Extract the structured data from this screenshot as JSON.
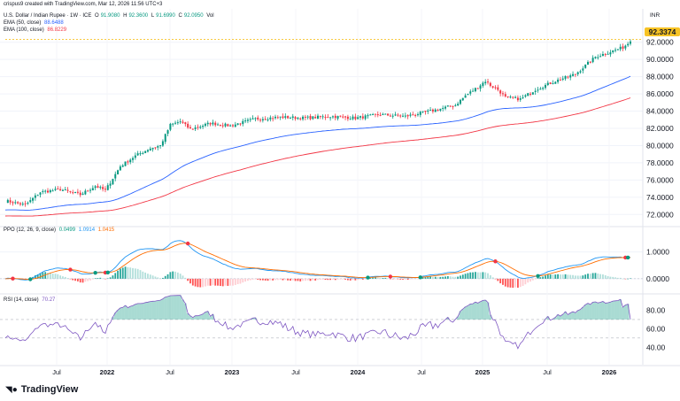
{
  "attribution": "crispus9 created with TradingView.com, Mar 12, 2026 11:56 UTC+3",
  "currency": "INR",
  "brand": "TradingView",
  "brand_icon": "tradingview-logo-icon",
  "legend": {
    "symbol": "U.S. Dollar / Indian Rupee · 1W · ICE",
    "ohlc": [
      {
        "k": "O",
        "v": "91.9080"
      },
      {
        "k": "H",
        "v": "92.3600"
      },
      {
        "k": "L",
        "v": "91.6990"
      },
      {
        "k": "C",
        "v": "92.0950"
      }
    ],
    "vol": "Vol",
    "ema50": {
      "label": "EMA (50, close)",
      "value": "88.6488"
    },
    "ema100": {
      "label": "EMA (100, close)",
      "value": "86.8229"
    },
    "ppo": {
      "label": "PPO (12, 26, 9, close)",
      "v1": "0.0499",
      "v2": "1.0914",
      "v3": "1.0415"
    },
    "rsi": {
      "label": "RSI (14, close)",
      "value": "70.27"
    }
  },
  "last_price": "92.3374",
  "colors": {
    "up": "#089981",
    "down": "#f23645",
    "ema50": "#2962ff",
    "ema100": "#f23645",
    "ppo_line": "#2196f3",
    "ppo_signal": "#ff6d00",
    "rsi": "#7e57c2",
    "price_tag": "#f7c325"
  },
  "chart_data": [
    {
      "type": "candlestick",
      "title": "U.S. Dollar / Indian Rupee · 1W · ICE",
      "x_ticks": [
        "Jul",
        "2022",
        "Jul",
        "2023",
        "Jul",
        "2024",
        "Jul",
        "2025",
        "Jul",
        "2026"
      ],
      "y_ticks": [
        "92.0000",
        "90.0000",
        "88.0000",
        "86.0000",
        "84.0000",
        "82.0000",
        "80.0000",
        "78.0000",
        "76.0000",
        "74.0000",
        "72.0000"
      ],
      "ylim": [
        71.0,
        93.0
      ],
      "close_anchors": [
        [
          0,
          73.6
        ],
        [
          8,
          73.1
        ],
        [
          14,
          74.6
        ],
        [
          22,
          74.9
        ],
        [
          30,
          74.3
        ],
        [
          36,
          75.3
        ],
        [
          40,
          74.8
        ],
        [
          46,
          77.6
        ],
        [
          52,
          78.8
        ],
        [
          58,
          79.7
        ],
        [
          62,
          80.0
        ],
        [
          66,
          82.4
        ],
        [
          70,
          82.8
        ],
        [
          74,
          81.9
        ],
        [
          82,
          82.6
        ],
        [
          90,
          82.3
        ],
        [
          100,
          83.1
        ],
        [
          110,
          83.3
        ],
        [
          120,
          83.2
        ],
        [
          130,
          83.4
        ],
        [
          140,
          83.2
        ],
        [
          150,
          83.6
        ],
        [
          160,
          83.4
        ],
        [
          170,
          84.0
        ],
        [
          180,
          84.7
        ],
        [
          184,
          85.8
        ],
        [
          188,
          86.6
        ],
        [
          192,
          87.5
        ],
        [
          194,
          87.0
        ],
        [
          197,
          86.5
        ],
        [
          200,
          85.6
        ],
        [
          206,
          85.4
        ],
        [
          212,
          86.5
        ],
        [
          220,
          87.5
        ],
        [
          228,
          88.3
        ],
        [
          236,
          90.3
        ],
        [
          242,
          90.9
        ],
        [
          247,
          91.4
        ],
        [
          250,
          92.1
        ]
      ],
      "series": [
        {
          "name": "EMA (50, close)",
          "last": 88.6488
        },
        {
          "name": "EMA (100, close)",
          "last": 86.8229
        }
      ],
      "last_close": 92.3374
    },
    {
      "type": "line",
      "title": "PPO (12, 26, 9, close)",
      "y_ticks": [
        "1.0000",
        "0.0000"
      ],
      "ylim": [
        -0.5,
        1.55
      ],
      "series": [
        {
          "name": "PPO",
          "last": 1.0914
        },
        {
          "name": "Signal",
          "last": 1.0415
        },
        {
          "name": "Histogram",
          "last": 0.0499
        }
      ]
    },
    {
      "type": "line",
      "title": "RSI (14, close)",
      "y_ticks": [
        "80.00",
        "60.00",
        "40.00"
      ],
      "ylim": [
        25,
        90
      ],
      "bands": [
        70,
        50
      ],
      "series": [
        {
          "name": "RSI",
          "last": 70.27
        }
      ]
    }
  ]
}
